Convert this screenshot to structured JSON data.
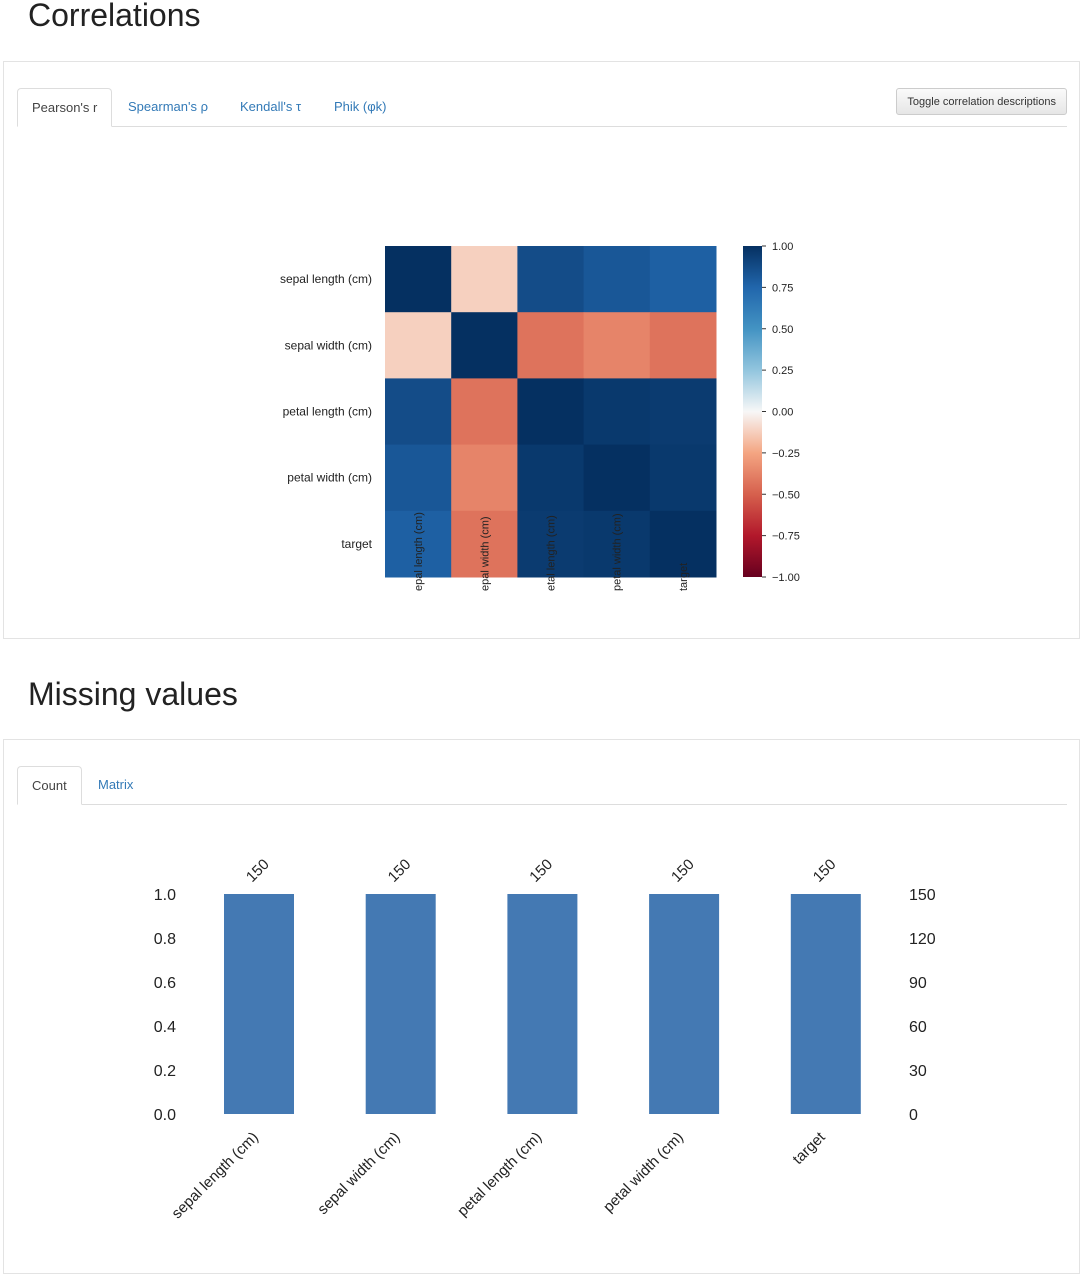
{
  "correlations": {
    "title": "Correlations",
    "tabs": [
      {
        "label": "Pearson's r",
        "active": true
      },
      {
        "label": "Spearman's ρ",
        "active": false
      },
      {
        "label": "Kendall's τ",
        "active": false
      },
      {
        "label": "Phik (φk)",
        "active": false
      }
    ],
    "toggle_button": "Toggle correlation descriptions"
  },
  "missing": {
    "title": "Missing values",
    "tabs": [
      {
        "label": "Count",
        "active": true
      },
      {
        "label": "Matrix",
        "active": false
      }
    ]
  },
  "colors": {
    "bar": "#4479b3",
    "link": "#337ab7"
  },
  "chart_data": [
    {
      "type": "heatmap",
      "rows": [
        "sepal length (cm)",
        "sepal width (cm)",
        "petal length (cm)",
        "petal width (cm)",
        "target"
      ],
      "x_tick_labels": [
        "epal length (cm)",
        "epal width (cm)",
        "etal length (cm)",
        "petal width (cm)",
        "target"
      ],
      "values": [
        [
          1.0,
          -0.12,
          0.87,
          0.82,
          0.78
        ],
        [
          -0.12,
          1.0,
          -0.43,
          -0.37,
          -0.43
        ],
        [
          0.87,
          -0.43,
          1.0,
          0.96,
          0.95
        ],
        [
          0.82,
          -0.37,
          0.96,
          1.0,
          0.96
        ],
        [
          0.78,
          -0.43,
          0.95,
          0.96,
          1.0
        ]
      ],
      "vmin": -1.0,
      "vmax": 1.0,
      "colorbar_ticks": [
        "1.00",
        "0.75",
        "0.50",
        "0.25",
        "0.00",
        "−0.25",
        "−0.50",
        "−0.75",
        "−1.00"
      ],
      "colormap": "RdBu"
    },
    {
      "type": "bar",
      "categories": [
        "sepal length (cm)",
        "sepal width (cm)",
        "petal length (cm)",
        "petal width (cm)",
        "target"
      ],
      "values": [
        150,
        150,
        150,
        150,
        150
      ],
      "data_labels": [
        "150",
        "150",
        "150",
        "150",
        "150"
      ],
      "total": 150,
      "left_ticks": [
        "0.0",
        "0.2",
        "0.4",
        "0.6",
        "0.8",
        "1.0"
      ],
      "right_ticks": [
        "0",
        "30",
        "60",
        "90",
        "120",
        "150"
      ],
      "ylim": [
        0,
        1.0
      ]
    }
  ]
}
